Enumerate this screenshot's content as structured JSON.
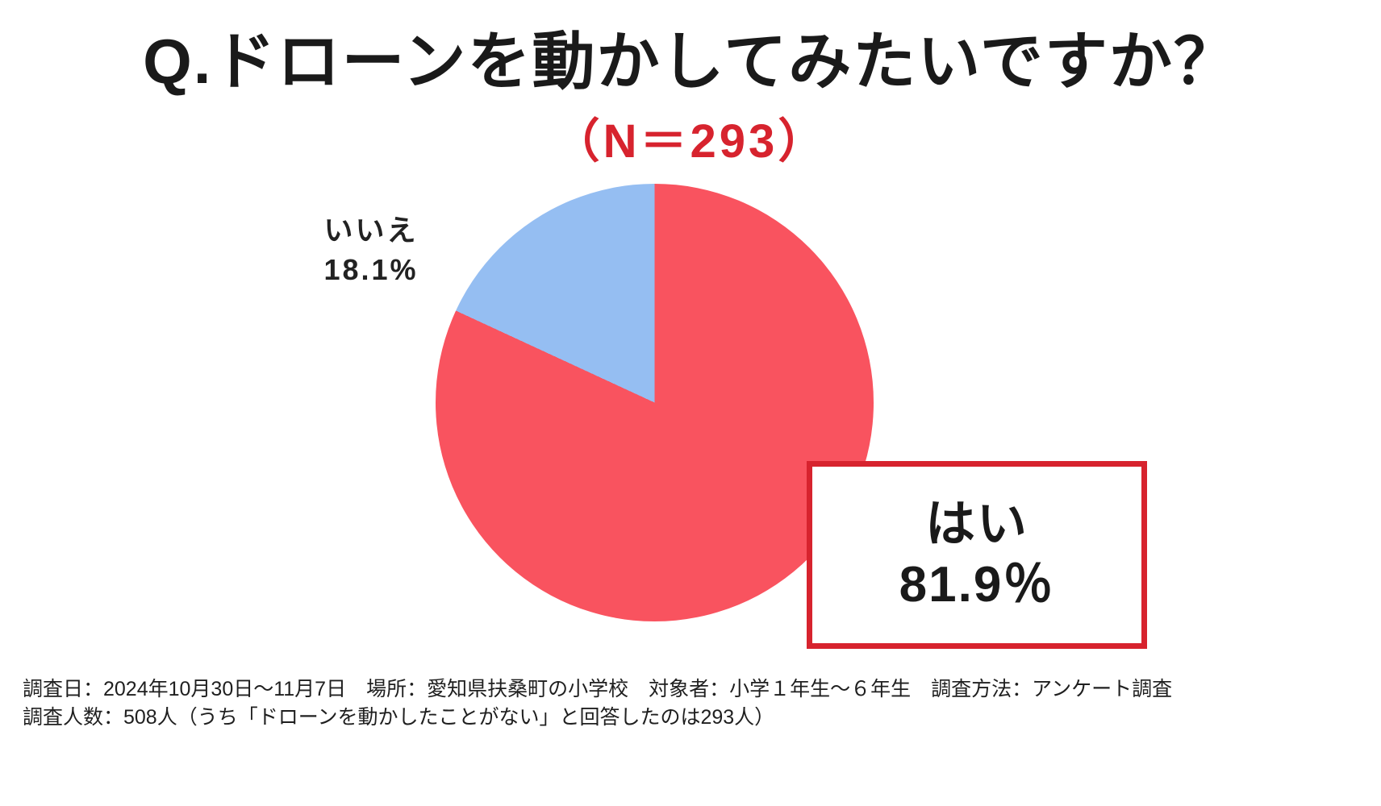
{
  "title": "Q.ドローンを動かしてみたいですか？",
  "subtitle": "（N＝293）",
  "chart_data": {
    "type": "pie",
    "title": "Q.ドローンを動かしてみたいですか？",
    "subtitle": "（N＝293）",
    "sample_size": 293,
    "categories": [
      "はい",
      "いいえ"
    ],
    "values": [
      81.9,
      18.1
    ],
    "unit": "%",
    "colors": [
      "#f9535f",
      "#95bef2"
    ],
    "start_angle": "12-o'clock",
    "direction": "clockwise",
    "legend_position": "none",
    "labels": [
      {
        "name": "はい",
        "value_text": "81.9％",
        "style": "boxed-right"
      },
      {
        "name": "いいえ",
        "value_text": "18.1%",
        "style": "plain-upper-left"
      }
    ]
  },
  "labels": {
    "no_name": "いいえ",
    "no_value": "18.1%",
    "yes_name": "はい",
    "yes_value": "81.9％"
  },
  "footer": {
    "line1": "調査日：2024年10月30日～11月7日　場所：愛知県扶桑町の小学校　対象者：小学１年生～６年生　調査方法：アンケート調査",
    "line2": "調査人数：508人（うち「ドローンを動かしたことがない」と回答したのは293人）"
  },
  "colors": {
    "yes_slice": "#f9535f",
    "no_slice": "#95bef2",
    "accent_red": "#d7232e",
    "box_border": "#d7232e",
    "text": "#1a1a1a"
  }
}
